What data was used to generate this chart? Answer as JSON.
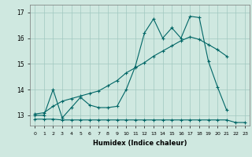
{
  "xlabel": "Humidex (Indice chaleur)",
  "bg_color": "#cfe8e0",
  "line_color": "#006666",
  "grid_color": "#a0c8c0",
  "x": [
    0,
    1,
    2,
    3,
    4,
    5,
    6,
    7,
    8,
    9,
    10,
    11,
    12,
    13,
    14,
    15,
    16,
    17,
    18,
    19,
    20,
    21,
    22,
    23
  ],
  "line1": [
    13.0,
    13.0,
    14.0,
    12.9,
    13.3,
    13.7,
    13.4,
    13.3,
    13.3,
    13.35,
    14.0,
    14.9,
    16.2,
    16.75,
    16.0,
    16.4,
    16.0,
    16.85,
    16.8,
    15.1,
    14.1,
    13.2,
    null,
    null
  ],
  "line2": [
    13.05,
    13.1,
    13.35,
    13.55,
    13.65,
    13.75,
    13.85,
    13.95,
    14.15,
    14.35,
    14.65,
    14.85,
    15.05,
    15.3,
    15.5,
    15.7,
    15.9,
    16.05,
    15.95,
    15.75,
    15.55,
    15.3,
    null,
    null
  ],
  "line3": [
    12.85,
    12.85,
    12.85,
    12.82,
    12.82,
    12.82,
    12.82,
    12.82,
    12.82,
    12.82,
    12.82,
    12.82,
    12.82,
    12.82,
    12.82,
    12.82,
    12.82,
    12.82,
    12.82,
    12.82,
    12.82,
    12.82,
    12.72,
    12.72
  ],
  "ylim": [
    12.6,
    17.3
  ],
  "xlim": [
    -0.5,
    23.5
  ],
  "yticks": [
    13,
    14,
    15,
    16,
    17
  ]
}
